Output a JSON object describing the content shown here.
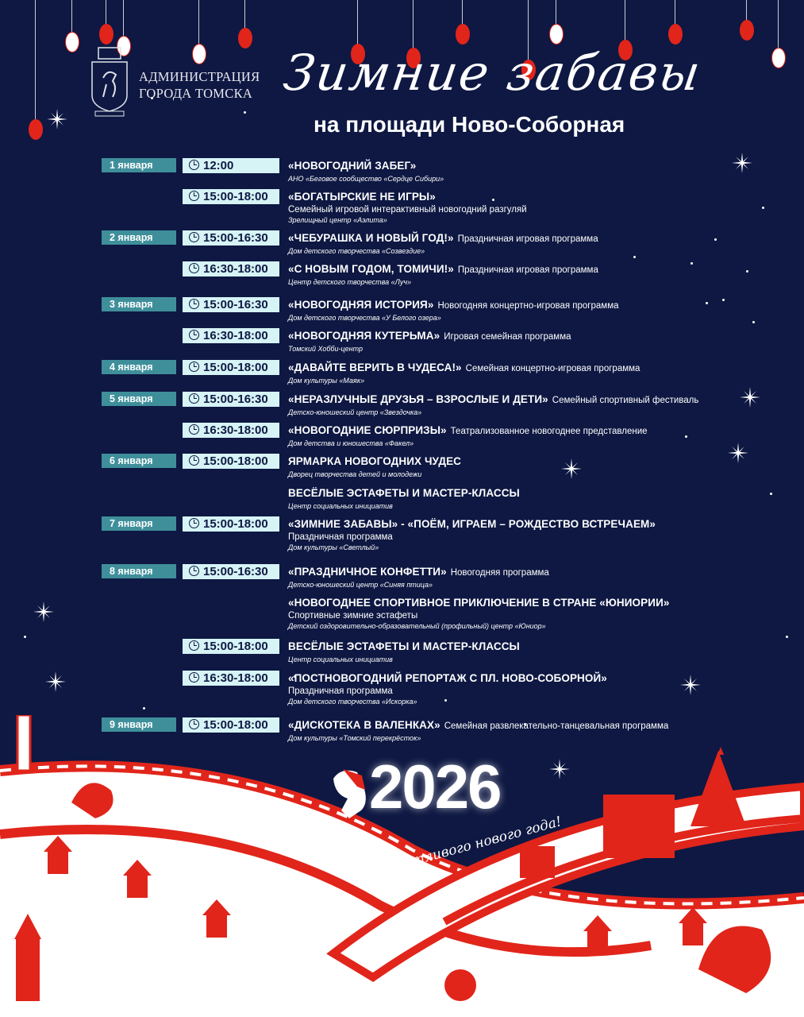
{
  "header": {
    "org_line1": "АДМИНИСТРАЦИЯ",
    "org_line2": "ГОРОДА ТОМСКА",
    "title": "Зимние забавы",
    "subtitle": "на площади Ново-Соборная"
  },
  "colors": {
    "background": "#0e1842",
    "date_box": "#3f8f9b",
    "time_box": "#d6f3f5",
    "accent_red": "#e1251b"
  },
  "schedule": [
    {
      "date": "1 января",
      "time": "12:00",
      "title": "«НОВОГОДНИЙ ЗАБЕГ»",
      "desc": "",
      "line2": "",
      "org": "АНО «Беговое сообщество «Сердце Сибири»"
    },
    {
      "date": "",
      "time": "15:00-18:00",
      "title": "«БОГАТЫРСКИЕ НЕ ИГРЫ»",
      "desc": "",
      "line2": "Семейный игровой интерактивный новогодний разгуляй",
      "org": "Зрелищный центр «Аэлита»"
    },
    {
      "date": "2 января",
      "time": "15:00-16:30",
      "title": "«ЧЕБУРАШКА И НОВЫЙ ГОД!»",
      "desc": "Праздничная игровая программа",
      "line2": "",
      "org": "Дом детского творчества «Созвездие»"
    },
    {
      "date": "",
      "time": "16:30-18:00",
      "title": "«С НОВЫМ ГОДОМ, ТОМИЧИ!»",
      "desc": "Праздничная игровая программа",
      "line2": "",
      "org": "Центр детского творчества «Луч»"
    },
    {
      "date": "3 января",
      "time": "15:00-16:30",
      "title": "«НОВОГОДНЯЯ ИСТОРИЯ»",
      "desc": "Новогодняя концертно-игровая программа",
      "line2": "",
      "org": "Дом детского творчества «У Белого озера»"
    },
    {
      "date": "",
      "time": "16:30-18:00",
      "title": "«НОВОГОДНЯЯ КУТЕРЬМА»",
      "desc": "Игровая семейная программа",
      "line2": "",
      "org": "Томский Хобби-центр"
    },
    {
      "date": "4 января",
      "time": "15:00-18:00",
      "title": "«ДАВАЙТЕ ВЕРИТЬ В ЧУДЕСА!»",
      "desc": "Семейная концертно-игровая программа",
      "line2": "",
      "org": "Дом культуры «Маяк»"
    },
    {
      "date": "5 января",
      "time": "15:00-16:30",
      "title": "«НЕРАЗЛУЧНЫЕ ДРУЗЬЯ – ВЗРОСЛЫЕ И ДЕТИ»",
      "desc": "Семейный спортивный фестиваль",
      "line2": "",
      "org": "Детско-юношеский центр «Звездочка»"
    },
    {
      "date": "",
      "time": "16:30-18:00",
      "title": "«НОВОГОДНИЕ СЮРПРИЗЫ»",
      "desc": "Театрализованное новогоднее представление",
      "line2": "",
      "org": "Дом детства и юношества «Факел»"
    },
    {
      "date": "6 января",
      "time": "15:00-18:00",
      "title": "ЯРМАРКА НОВОГОДНИХ ЧУДЕС",
      "desc": "",
      "line2": "",
      "org": "Дворец творчества детей и молодежи"
    },
    {
      "date": "",
      "time": "",
      "title": "ВЕСЁЛЫЕ ЭСТАФЕТЫ И МАСТЕР-КЛАССЫ",
      "desc": "",
      "line2": "",
      "org": "Центр социальных инициатив"
    },
    {
      "date": "7 января",
      "time": "15:00-18:00",
      "title": "«ЗИМНИЕ ЗАБАВЫ» - «ПОЁМ, ИГРАЕМ – РОЖДЕСТВО ВСТРЕЧАЕМ»",
      "desc": "",
      "line2": "Праздничная программа",
      "org": "Дом культуры «Светлый»"
    },
    {
      "date": "8 января",
      "time": "15:00-16:30",
      "title": "«ПРАЗДНИЧНОЕ КОНФЕТТИ»",
      "desc": "Новогодняя программа",
      "line2": "",
      "org": "Детско-юношеский центр «Синяя птица»"
    },
    {
      "date": "",
      "time": "",
      "title": "«НОВОГОДНЕЕ СПОРТИВНОЕ ПРИКЛЮЧЕНИЕ В СТРАНЕ «ЮНИОРИИ»",
      "desc": "",
      "line2": "Спортивные зимние эстафеты",
      "org": "Детский оздоровительно-образовательный (профильный) центр «Юниор»"
    },
    {
      "date": "",
      "time": "15:00-18:00",
      "title": "ВЕСЁЛЫЕ ЭСТАФЕТЫ И МАСТЕР-КЛАССЫ",
      "desc": "",
      "line2": "",
      "org": "Центр социальных инициатив"
    },
    {
      "date": "",
      "time": "16:30-18:00",
      "title": "«ПОСТНОВОГОДНИЙ РЕПОРТАЖ С ПЛ. НОВО-СОБОРНОЙ»",
      "desc": "",
      "line2": "Праздничная программа",
      "org": "Дом детского творчества «Искорка»"
    },
    {
      "date": "9 января",
      "time": "15:00-18:00",
      "title": "«ДИСКОТЕКА В ВАЛЕНКАХ»",
      "desc": "Семейная развлекательно-танцевальная программа",
      "line2": "",
      "org": "Дом культуры «Томский перекрёсток»"
    }
  ],
  "greeting": {
    "year": "2026",
    "text": "Счастливого нового года!"
  }
}
